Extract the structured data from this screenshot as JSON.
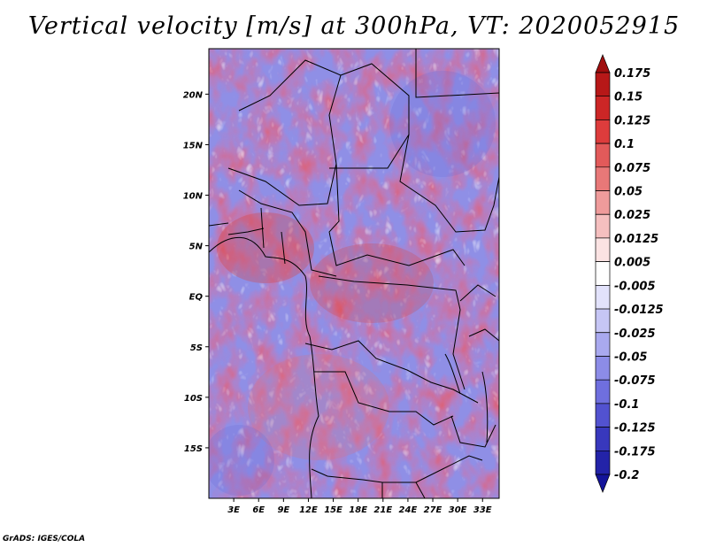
{
  "title": "Vertical velocity [m/s] at 300hPa, VT: 2020052915",
  "credit": "GrADS: IGES/COLA",
  "map": {
    "lon_ticks": [
      "3E",
      "6E",
      "9E",
      "12E",
      "15E",
      "18E",
      "21E",
      "24E",
      "27E",
      "30E",
      "33E"
    ],
    "lat_ticks": [
      "20N",
      "15N",
      "10N",
      "5N",
      "EQ",
      "5S",
      "10S",
      "15S"
    ],
    "lon_range": [
      0,
      35
    ],
    "lat_range": [
      -20,
      24.5
    ]
  },
  "colorbar": {
    "labels": [
      "0.175",
      "0.15",
      "0.125",
      "0.1",
      "0.075",
      "0.05",
      "0.025",
      "0.0125",
      "0.005",
      "-0.005",
      "-0.0125",
      "-0.025",
      "-0.05",
      "-0.075",
      "-0.1",
      "-0.125",
      "-0.175",
      "-0.2"
    ],
    "colors": [
      "#a00e0e",
      "#b71818",
      "#cc2626",
      "#dd3c3c",
      "#e25a5a",
      "#e87878",
      "#ef9b9b",
      "#f5bfbf",
      "#fbe3e3",
      "#ffffff",
      "#e2e2fb",
      "#c6c6f5",
      "#a9a9ef",
      "#8c8ce7",
      "#6f6fde",
      "#5252d0",
      "#3838bd",
      "#2323a8",
      "#14149a"
    ]
  }
}
